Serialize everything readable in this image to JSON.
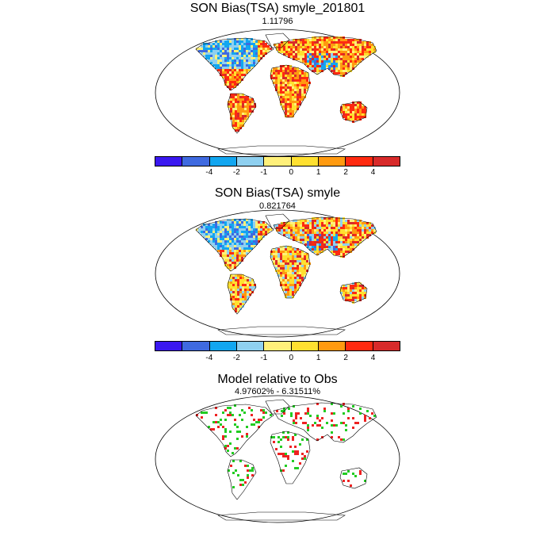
{
  "panels": [
    {
      "title": "SON Bias(TSA) smyle_201801",
      "subtitle": "1.11796",
      "kind": "bias"
    },
    {
      "title": "SON Bias(TSA) smyle",
      "subtitle": "0.821764",
      "kind": "bias"
    },
    {
      "title": "Model relative to Obs",
      "subtitle": "4.97602% - 6.31511%",
      "kind": "relative"
    }
  ],
  "colorbar": {
    "colors": [
      "#3a18f0",
      "#3f6ae0",
      "#12a6f0",
      "#8fd0f0",
      "#fff07a",
      "#ffe030",
      "#ff9a10",
      "#ff2a10",
      "#d82a2a"
    ],
    "tick_labels": [
      "-4",
      "-2",
      "-1",
      "0",
      "1",
      "2",
      "4"
    ]
  },
  "relative_colors": {
    "model_better": "#22cc22",
    "model_worse": "#ee2222"
  },
  "map_style": {
    "land_fill": "#ffffff",
    "coast_color": "#000000",
    "projection": "Robinson"
  }
}
